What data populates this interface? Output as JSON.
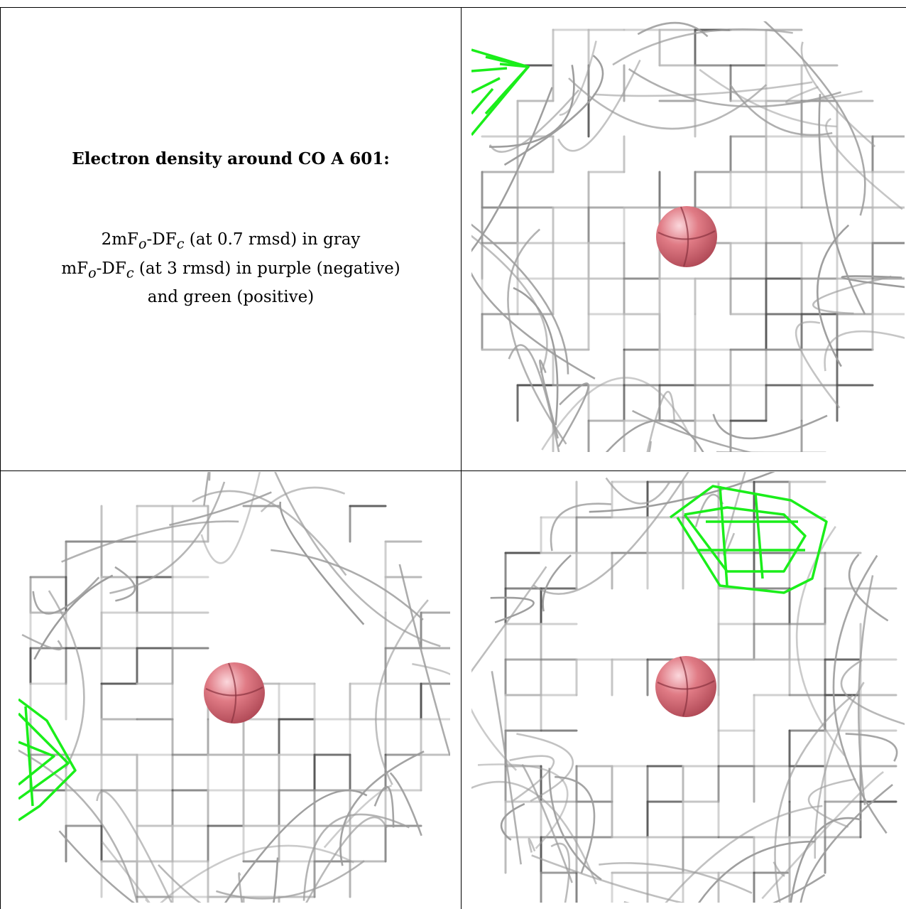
{
  "caption": {
    "title": "Electron density around CO A 601:",
    "line1_pre": "2mF",
    "line1_sub1": "o",
    "line1_mid": "-DF",
    "line1_sub2": "c",
    "line1_post": " (at 0.7 rmsd) in gray",
    "line2_pre": "mF",
    "line2_sub1": "o",
    "line2_mid": "-DF",
    "line2_sub2": "c",
    "line2_post": " (at 3 rmsd) in purple (negative)",
    "line3": "and green (positive)"
  },
  "colors": {
    "mesh_gray": "#b8b8b8",
    "mesh_dark": "#555555",
    "positive_green": "#1aee1a",
    "atom_pink": "#e07b85"
  },
  "panels": [
    {
      "name": "view-top-right"
    },
    {
      "name": "view-bottom-left"
    },
    {
      "name": "view-bottom-right"
    }
  ]
}
